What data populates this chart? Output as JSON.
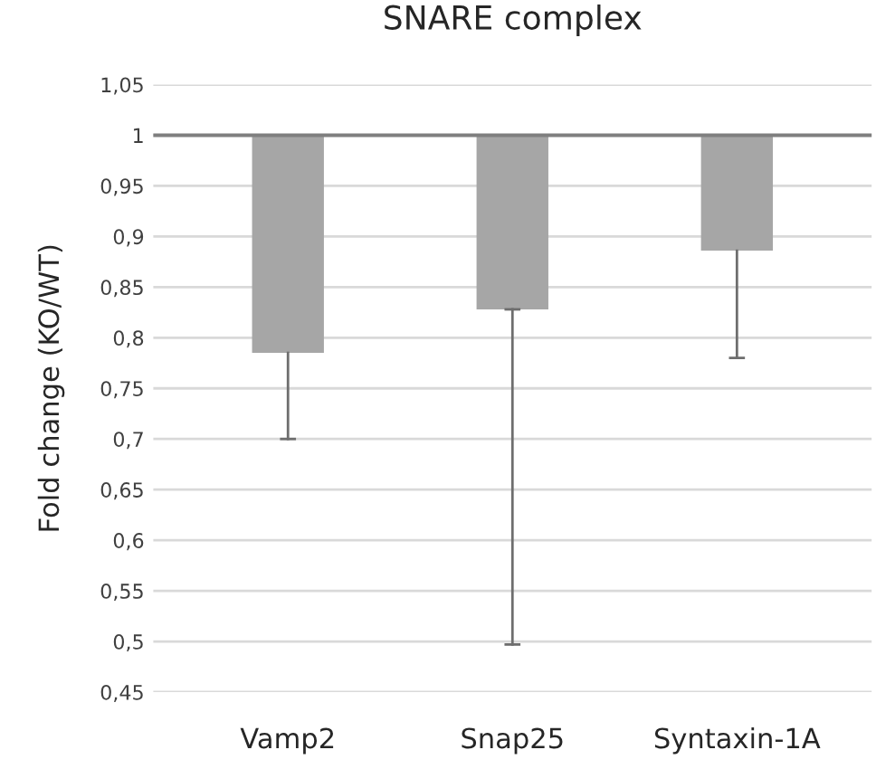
{
  "chart_data": {
    "type": "bar",
    "title": "SNARE complex",
    "ylabel": "Fold change (KO/WT)",
    "categories": [
      "Vamp2",
      "Snap25",
      "Syntaxin-1A"
    ],
    "base": [
      1,
      1,
      1
    ],
    "values": [
      -0.215,
      -0.172,
      -0.114
    ],
    "errors": [
      [
        0.7,
        0.785
      ],
      [
        0.497,
        0.828
      ],
      [
        0.78,
        0.886
      ]
    ],
    "color": "#a6a6a6",
    "ylim": [
      0.45,
      1.05
    ],
    "yticks": [
      {
        "value": 0.45,
        "label": "0,45"
      },
      {
        "value": 0.5,
        "label": "0,5"
      },
      {
        "value": 0.55,
        "label": "0,55"
      },
      {
        "value": 0.6,
        "label": "0,6"
      },
      {
        "value": 0.65,
        "label": "0,65"
      },
      {
        "value": 0.7,
        "label": "0,7"
      },
      {
        "value": 0.75,
        "label": "0,75"
      },
      {
        "value": 0.8,
        "label": "0,8"
      },
      {
        "value": 0.85,
        "label": "0,85"
      },
      {
        "value": 0.9,
        "label": "0,9"
      },
      {
        "value": 0.95,
        "label": "0,95"
      },
      {
        "value": 1,
        "label": "1"
      },
      {
        "value": 1.05,
        "label": "1,05"
      }
    ],
    "ref_lines": [
      {
        "axis": "y",
        "value": 1,
        "color": "#7f7f7f"
      }
    ],
    "grid": "y",
    "legend": false
  }
}
